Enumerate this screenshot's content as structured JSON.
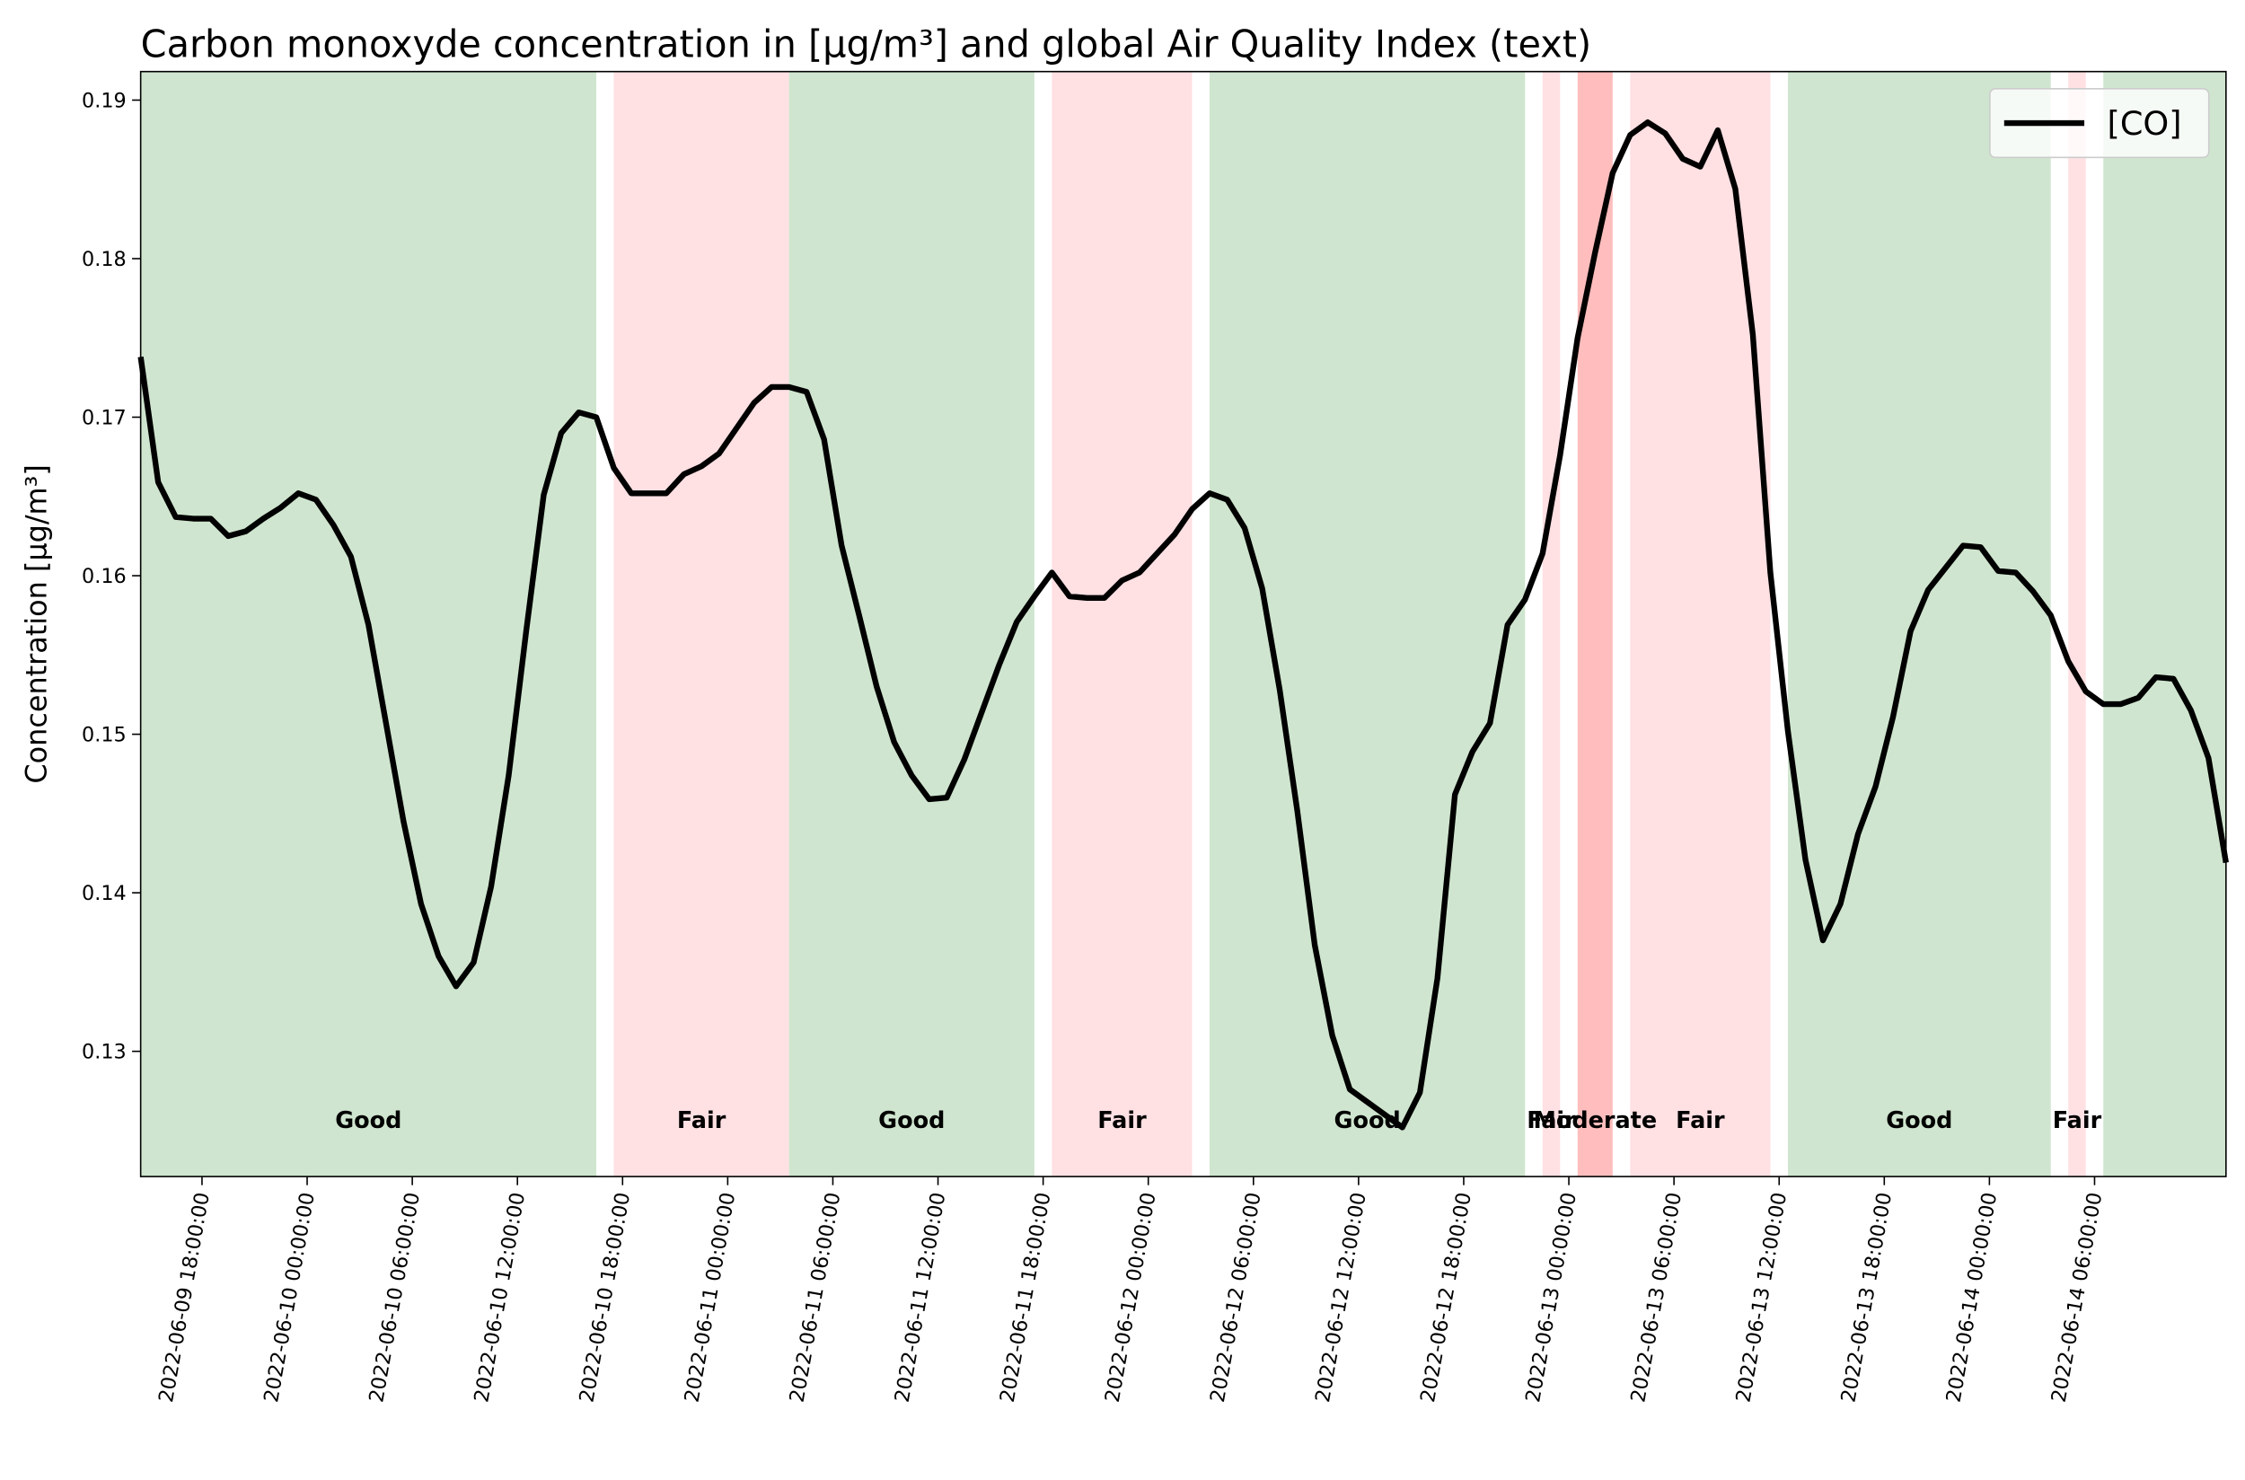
{
  "chart_data": {
    "type": "line",
    "title": "Carbon monoxyde concentration in [μg/m³] and global Air Quality Index (text)",
    "y_label": "Concentration [μg/m³]",
    "x": [
      "2022-06-09 14:30:00",
      "2022-06-09 15:30:00",
      "2022-06-09 16:30:00",
      "2022-06-09 17:30:00",
      "2022-06-09 18:30:00",
      "2022-06-09 19:30:00",
      "2022-06-09 20:30:00",
      "2022-06-09 21:30:00",
      "2022-06-09 22:30:00",
      "2022-06-09 23:30:00",
      "2022-06-10 00:30:00",
      "2022-06-10 01:30:00",
      "2022-06-10 02:30:00",
      "2022-06-10 03:30:00",
      "2022-06-10 04:30:00",
      "2022-06-10 05:30:00",
      "2022-06-10 06:30:00",
      "2022-06-10 07:30:00",
      "2022-06-10 08:30:00",
      "2022-06-10 09:30:00",
      "2022-06-10 10:30:00",
      "2022-06-10 11:30:00",
      "2022-06-10 12:30:00",
      "2022-06-10 13:30:00",
      "2022-06-10 14:30:00",
      "2022-06-10 15:30:00",
      "2022-06-10 16:30:00",
      "2022-06-10 17:30:00",
      "2022-06-10 18:30:00",
      "2022-06-10 19:30:00",
      "2022-06-10 20:30:00",
      "2022-06-10 21:30:00",
      "2022-06-10 22:30:00",
      "2022-06-10 23:30:00",
      "2022-06-11 00:30:00",
      "2022-06-11 01:30:00",
      "2022-06-11 02:30:00",
      "2022-06-11 03:30:00",
      "2022-06-11 04:30:00",
      "2022-06-11 05:30:00",
      "2022-06-11 06:30:00",
      "2022-06-11 07:30:00",
      "2022-06-11 08:30:00",
      "2022-06-11 09:30:00",
      "2022-06-11 10:30:00",
      "2022-06-11 11:30:00",
      "2022-06-11 12:30:00",
      "2022-06-11 13:30:00",
      "2022-06-11 14:30:00",
      "2022-06-11 15:30:00",
      "2022-06-11 16:30:00",
      "2022-06-11 17:30:00",
      "2022-06-11 18:30:00",
      "2022-06-11 19:30:00",
      "2022-06-11 20:30:00",
      "2022-06-11 21:30:00",
      "2022-06-11 22:30:00",
      "2022-06-11 23:30:00",
      "2022-06-12 00:30:00",
      "2022-06-12 01:30:00",
      "2022-06-12 02:30:00",
      "2022-06-12 03:30:00",
      "2022-06-12 04:30:00",
      "2022-06-12 05:30:00",
      "2022-06-12 06:30:00",
      "2022-06-12 07:30:00",
      "2022-06-12 08:30:00",
      "2022-06-12 09:30:00",
      "2022-06-12 10:30:00",
      "2022-06-12 11:30:00",
      "2022-06-12 12:30:00",
      "2022-06-12 13:30:00",
      "2022-06-12 14:30:00",
      "2022-06-12 15:30:00",
      "2022-06-12 16:30:00",
      "2022-06-12 17:30:00",
      "2022-06-12 18:30:00",
      "2022-06-12 19:30:00",
      "2022-06-12 20:30:00",
      "2022-06-12 21:30:00",
      "2022-06-12 22:30:00",
      "2022-06-12 23:30:00",
      "2022-06-13 00:30:00",
      "2022-06-13 01:30:00",
      "2022-06-13 02:30:00",
      "2022-06-13 03:30:00",
      "2022-06-13 04:30:00",
      "2022-06-13 05:30:00",
      "2022-06-13 06:30:00",
      "2022-06-13 07:30:00",
      "2022-06-13 08:30:00",
      "2022-06-13 09:30:00",
      "2022-06-13 10:30:00",
      "2022-06-13 11:30:00",
      "2022-06-13 12:30:00",
      "2022-06-13 13:30:00",
      "2022-06-13 14:30:00",
      "2022-06-13 15:30:00",
      "2022-06-13 16:30:00",
      "2022-06-13 17:30:00",
      "2022-06-13 18:30:00",
      "2022-06-13 19:30:00",
      "2022-06-13 20:30:00",
      "2022-06-13 21:30:00",
      "2022-06-13 22:30:00",
      "2022-06-13 23:30:00",
      "2022-06-14 00:30:00",
      "2022-06-14 01:30:00",
      "2022-06-14 02:30:00",
      "2022-06-14 03:30:00",
      "2022-06-14 04:30:00",
      "2022-06-14 05:30:00",
      "2022-06-14 06:30:00",
      "2022-06-14 07:30:00",
      "2022-06-14 08:30:00",
      "2022-06-14 09:30:00",
      "2022-06-14 10:30:00",
      "2022-06-14 11:30:00",
      "2022-06-14 12:30:00",
      "2022-06-14 13:30:00"
    ],
    "series": [
      {
        "name": "[CO]",
        "color": "#000000",
        "values": [
          0.1738,
          0.1659,
          0.1637,
          0.1636,
          0.1636,
          0.1625,
          0.1628,
          0.1636,
          0.1643,
          0.1652,
          0.1648,
          0.1632,
          0.1612,
          0.1569,
          0.1507,
          0.1445,
          0.1393,
          0.136,
          0.1341,
          0.1356,
          0.1404,
          0.1474,
          0.1565,
          0.1651,
          0.169,
          0.1703,
          0.17,
          0.1668,
          0.1652,
          0.1652,
          0.1652,
          0.1664,
          0.1669,
          0.1677,
          0.1693,
          0.1709,
          0.1719,
          0.1719,
          0.1716,
          0.1686,
          0.1619,
          0.1575,
          0.153,
          0.1495,
          0.1474,
          0.1459,
          0.146,
          0.1484,
          0.1514,
          0.1544,
          0.1571,
          0.1587,
          0.1602,
          0.1587,
          0.1586,
          0.1586,
          0.1597,
          0.1602,
          0.1614,
          0.1626,
          0.1642,
          0.1652,
          0.1648,
          0.163,
          0.1592,
          0.1528,
          0.1452,
          0.1367,
          0.131,
          0.1276,
          0.1268,
          0.126,
          0.1252,
          0.1274,
          0.1346,
          0.1462,
          0.1489,
          0.1507,
          0.1569,
          0.1585,
          0.1614,
          0.1676,
          0.175,
          0.1804,
          0.1854,
          0.1878,
          0.1886,
          0.1879,
          0.1863,
          0.1858,
          0.1881,
          0.1844,
          0.1752,
          0.1602,
          0.1502,
          0.1421,
          0.137,
          0.1393,
          0.1437,
          0.1467,
          0.1511,
          0.1565,
          0.1591,
          0.1605,
          0.1619,
          0.1618,
          0.1603,
          0.1602,
          0.159,
          0.1575,
          0.1546,
          0.1527,
          0.1519,
          0.1519,
          0.1523,
          0.1536,
          0.1535,
          0.1515,
          0.1485,
          0.1419
        ]
      }
    ],
    "aqi_bands": [
      {
        "start": "2022-06-09 14:30:00",
        "end": "2022-06-10 16:30:00",
        "label": "Good",
        "color": "#cfe5cf"
      },
      {
        "start": "2022-06-10 17:30:00",
        "end": "2022-06-11 03:30:00",
        "label": "Fair",
        "color": "#ffe0e3"
      },
      {
        "start": "2022-06-11 03:30:00",
        "end": "2022-06-11 17:30:00",
        "label": "Good",
        "color": "#cfe5cf"
      },
      {
        "start": "2022-06-11 18:30:00",
        "end": "2022-06-12 02:30:00",
        "label": "Fair",
        "color": "#ffe0e3"
      },
      {
        "start": "2022-06-12 03:30:00",
        "end": "2022-06-12 21:30:00",
        "label": "Good",
        "color": "#cfe5cf"
      },
      {
        "start": "2022-06-12 22:30:00",
        "end": "2022-06-12 23:30:00",
        "label": "Fair",
        "color": "#ffe0e3"
      },
      {
        "start": "2022-06-13 00:30:00",
        "end": "2022-06-13 02:30:00",
        "label": "Moderate",
        "color": "#ffbdbd"
      },
      {
        "start": "2022-06-13 03:30:00",
        "end": "2022-06-13 11:30:00",
        "label": "Fair",
        "color": "#ffe0e3"
      },
      {
        "start": "2022-06-13 12:30:00",
        "end": "2022-06-14 03:30:00",
        "label": "Good",
        "color": "#cfe5cf"
      },
      {
        "start": "2022-06-14 04:30:00",
        "end": "2022-06-14 05:30:00",
        "label": "Fair",
        "color": "#ffe0e3"
      },
      {
        "start": "2022-06-14 06:30:00",
        "end": "2022-06-14 13:30:00",
        "label": null,
        "color": "#cfe5cf"
      }
    ],
    "xlim": [
      "2022-06-09 14:30:00",
      "2022-06-14 13:30:00"
    ],
    "xticks": [
      "2022-06-09 18:00:00",
      "2022-06-10 00:00:00",
      "2022-06-10 06:00:00",
      "2022-06-10 12:00:00",
      "2022-06-10 18:00:00",
      "2022-06-11 00:00:00",
      "2022-06-11 06:00:00",
      "2022-06-11 12:00:00",
      "2022-06-11 18:00:00",
      "2022-06-12 00:00:00",
      "2022-06-12 06:00:00",
      "2022-06-12 12:00:00",
      "2022-06-12 18:00:00",
      "2022-06-13 00:00:00",
      "2022-06-13 06:00:00",
      "2022-06-13 12:00:00",
      "2022-06-13 18:00:00",
      "2022-06-14 00:00:00",
      "2022-06-14 06:00:00"
    ],
    "ylim": [
      0.1221,
      0.1918
    ],
    "yticks": [
      0.13,
      0.14,
      0.15,
      0.16,
      0.17,
      0.18,
      0.19
    ],
    "legend": "upper right",
    "grid": false
  }
}
